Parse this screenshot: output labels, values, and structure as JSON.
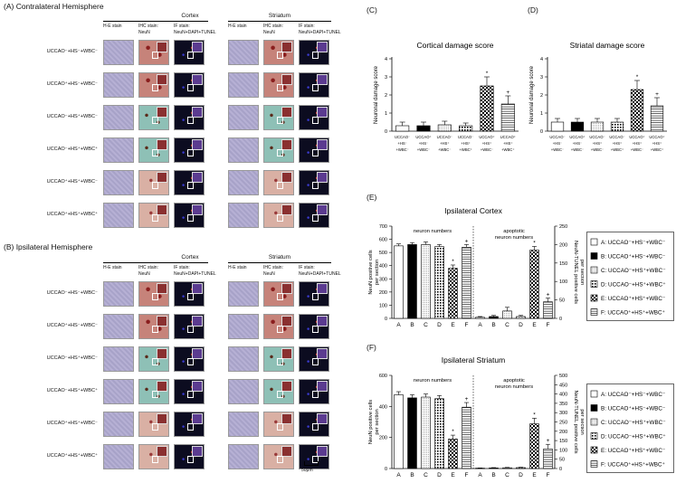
{
  "panel_a": {
    "title": "(A) Contralateral Hemisphere",
    "cortex": "Cortex",
    "striatum": "Striatum",
    "he": "H-E stain",
    "ihc1": "IHC stain:",
    "ihc2": "NeuN",
    "if1": "IF stain:",
    "if2": "NeuN+DAPI+TUNEL",
    "rows": [
      "UCCAO⁻+HS⁻+WBC⁻",
      "UCCAO⁺+HS⁻+WBC⁻",
      "UCCAO⁻+HS⁺+WBC⁻",
      "UCCAO⁻+HS⁺+WBC⁺",
      "UCCAO⁺+HS⁺+WBC⁻",
      "UCCAO⁺+HS⁺+WBC⁺"
    ]
  },
  "panel_b": {
    "title": "(B) Ipsilateral Hemisphere",
    "cortex": "Cortex",
    "striatum": "Striatum",
    "he": "H-E stain",
    "ihc1": "IHC stain:",
    "ihc2": "NeuN",
    "if1": "IF stain:",
    "if2": "NeuN+DAPI+TUNEL",
    "rows": [
      "UCCAO⁻+HS⁻+WBC⁻",
      "UCCAO⁺+HS⁻+WBC⁻",
      "UCCAO⁻+HS⁺+WBC⁻",
      "UCCAO⁻+HS⁺+WBC⁺",
      "UCCAO⁺+HS⁺+WBC⁻",
      "UCCAO⁺+HS⁺+WBC⁺"
    ],
    "scale": "50μm"
  },
  "groups": [
    "UCCAO⁻",
    "UCCAO⁺",
    "UCCAO⁻",
    "UCCAO⁻",
    "UCCAO⁺",
    "UCCAO⁺"
  ],
  "groups_hs": [
    "+HS⁻",
    "+HS⁻",
    "+HS⁺",
    "+HS⁺",
    "+HS⁺",
    "+HS⁺"
  ],
  "groups_wbc": [
    "+WBC⁻",
    "+WBC⁻",
    "+WBC⁻",
    "+WBC⁺",
    "+WBC⁻",
    "+WBC⁺"
  ],
  "legend": [
    "A: UCCAO⁻+HS⁻+WBC⁻",
    "B: UCCAO⁺+HS⁻+WBC⁻",
    "C: UCCAO⁻+HS⁺+WBC⁻",
    "D: UCCAO⁻+HS⁺+WBC⁺",
    "E: UCCAO⁺+HS⁺+WBC⁻",
    "F: UCCAO⁺+HS⁺+WBC⁺"
  ],
  "chart_data": [
    {
      "panel": "(C)",
      "type": "bar",
      "title": "Cortical damage score",
      "ylabel": "Neuronal damage score",
      "ylim": [
        0,
        4
      ],
      "yticks": [
        0,
        1,
        2,
        3,
        4
      ],
      "values": [
        0.3,
        0.3,
        0.35,
        0.3,
        2.5,
        1.5
      ],
      "errors": [
        0.2,
        0.2,
        0.2,
        0.15,
        0.5,
        0.45
      ],
      "marks": [
        "",
        "",
        "",
        "",
        "*",
        "+"
      ]
    },
    {
      "panel": "(D)",
      "type": "bar",
      "title": "Striatal damage score",
      "ylabel": "Neuronal damage score",
      "ylim": [
        0,
        4
      ],
      "yticks": [
        0,
        1,
        2,
        3,
        4
      ],
      "values": [
        0.5,
        0.5,
        0.5,
        0.5,
        2.3,
        1.4
      ],
      "errors": [
        0.2,
        0.2,
        0.2,
        0.2,
        0.5,
        0.45
      ],
      "marks": [
        "",
        "",
        "",
        "",
        "*",
        "+"
      ]
    },
    {
      "panel": "(E)",
      "type": "bar",
      "title": "Ipsilateral Cortex",
      "ylabel": "NeuN positive cells\nper section",
      "y2label": "NeuN-TUNEL positive cells\nper section",
      "ylim": [
        0,
        700
      ],
      "yticks": [
        0,
        100,
        200,
        300,
        400,
        500,
        600,
        700
      ],
      "y2lim": [
        0,
        250
      ],
      "y2ticks": [
        0,
        50,
        100,
        150,
        200,
        250
      ],
      "group1_label": "neuron numbers",
      "group2_label": "apoptotic\nneuron numbers",
      "categories": [
        "A",
        "B",
        "C",
        "D",
        "E",
        "F"
      ],
      "neuron_values": [
        550,
        560,
        560,
        545,
        380,
        540
      ],
      "neuron_errors": [
        15,
        15,
        20,
        15,
        25,
        20
      ],
      "neuron_marks": [
        "",
        "",
        "",
        "",
        "*",
        "+"
      ],
      "apoptotic_values": [
        3,
        5,
        20,
        5,
        185,
        45
      ],
      "apoptotic_errors": [
        2,
        3,
        10,
        3,
        10,
        10
      ],
      "apoptotic_marks": [
        "",
        "",
        "",
        "",
        "*",
        "+"
      ]
    },
    {
      "panel": "(F)",
      "type": "bar",
      "title": "Ipsilateral Striatum",
      "ylabel": "NeuN positive cells\nper section",
      "y2label": "NeuN-TUNEL positive cells\nper section",
      "ylim": [
        0,
        600
      ],
      "yticks": [
        0,
        200,
        400,
        600
      ],
      "y2lim": [
        0,
        500
      ],
      "y2ticks": [
        0,
        50,
        100,
        150,
        200,
        250,
        300,
        350,
        400,
        450,
        500
      ],
      "group1_label": "neuron numbers",
      "group2_label": "apoptotic\nneuron numbers",
      "categories": [
        "A",
        "B",
        "C",
        "D",
        "E",
        "F"
      ],
      "neuron_values": [
        475,
        455,
        460,
        450,
        190,
        395
      ],
      "neuron_errors": [
        20,
        20,
        20,
        20,
        25,
        30
      ],
      "neuron_marks": [
        "",
        "",
        "",
        "",
        "*",
        "+"
      ],
      "apoptotic_values": [
        2,
        3,
        4,
        5,
        240,
        105
      ],
      "apoptotic_errors": [
        1,
        2,
        2,
        2,
        30,
        25
      ],
      "apoptotic_marks": [
        "",
        "",
        "",
        "",
        "*",
        "+"
      ]
    }
  ],
  "panel_labels": {
    "c": "(C)",
    "d": "(D)",
    "e": "(E)",
    "f": "(F)"
  }
}
